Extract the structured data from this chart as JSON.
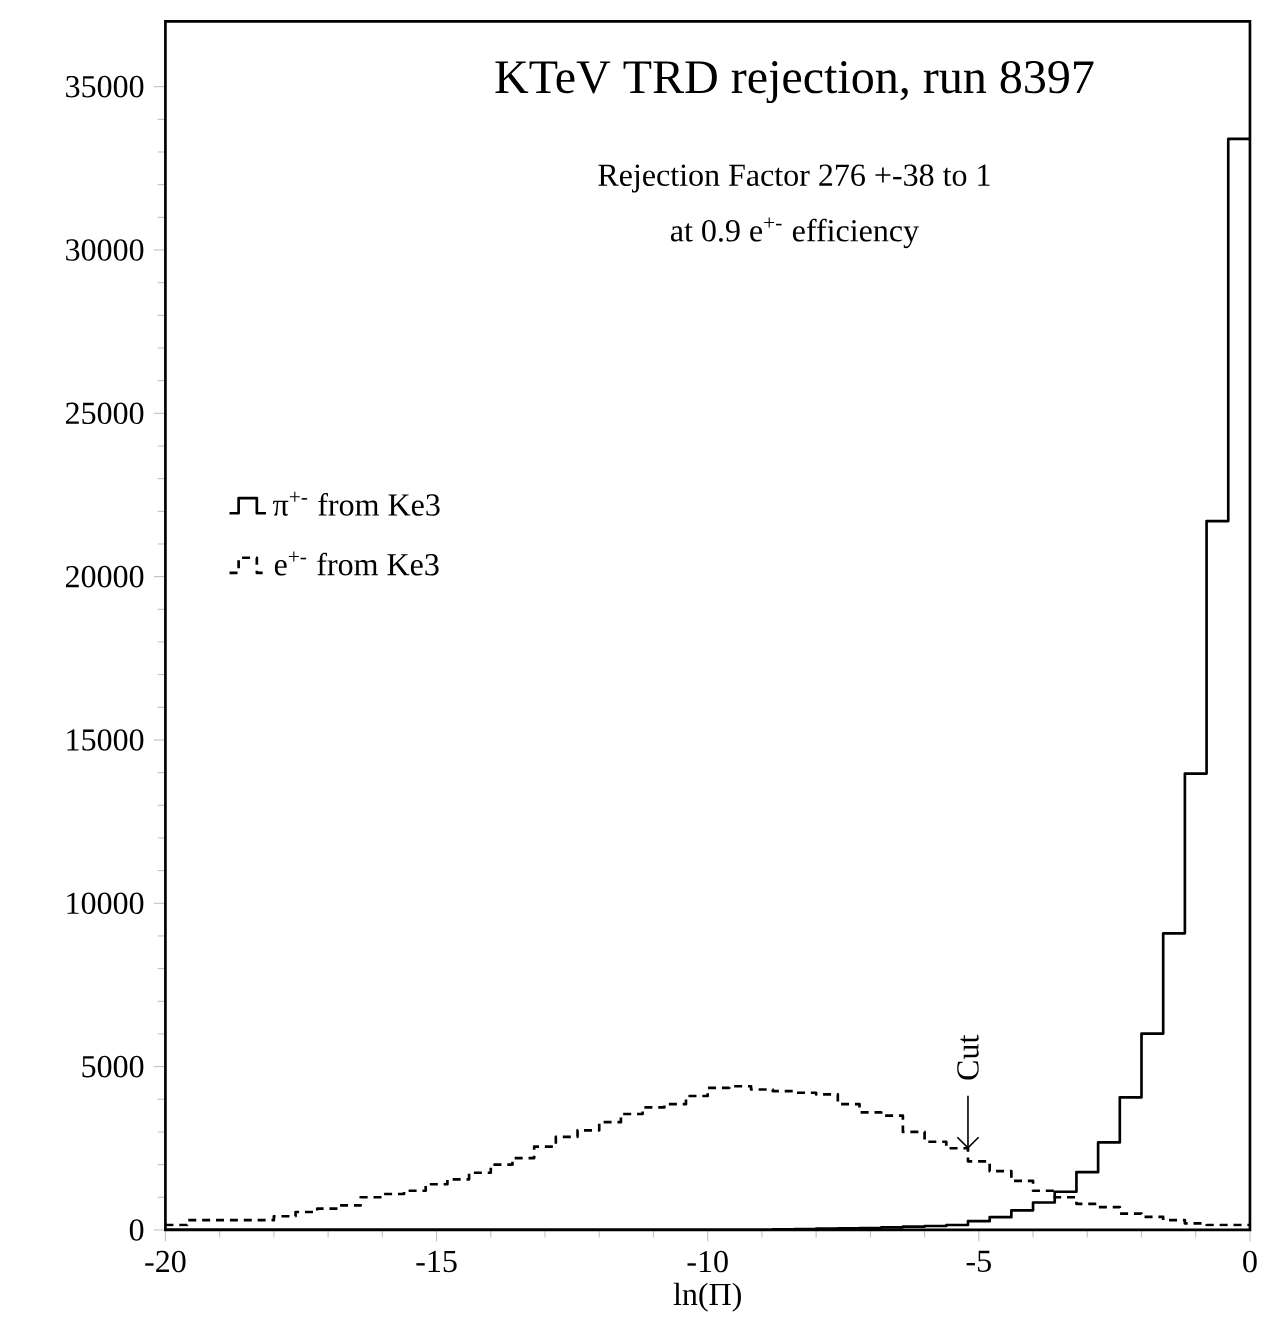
{
  "chart_data": {
    "type": "histogram",
    "title": "KTeV TRD rejection, run 8397",
    "xlabel": "ln(Π)",
    "bins": [
      -20,
      -19.6,
      -19.2,
      -18.8,
      -18.4,
      -18,
      -17.6,
      -17.2,
      -16.8,
      -16.4,
      -16,
      -15.6,
      -15.2,
      -14.8,
      -14.4,
      -14,
      -13.6,
      -13.2,
      -12.8,
      -12.4,
      -12,
      -11.6,
      -11.2,
      -10.8,
      -10.4,
      -10,
      -9.6,
      -9.2,
      -8.8,
      -8.4,
      -8,
      -7.6,
      -7.2,
      -6.8,
      -6.4,
      -6,
      -5.6,
      -5.2,
      -4.8,
      -4.4,
      -4,
      -3.6,
      -3.2,
      -2.8,
      -2.4,
      -2,
      -1.6,
      -1.2,
      -0.8,
      -0.4,
      0
    ],
    "series": [
      {
        "name": "π$^{+-}$ from Ke3",
        "color": "#000000",
        "line_style": "solid",
        "values": [
          0,
          0,
          0,
          0,
          0,
          0,
          0,
          0,
          0,
          0,
          0,
          0,
          0,
          0,
          0,
          0,
          0,
          0,
          0,
          0,
          0,
          0,
          0,
          0,
          0,
          0,
          0,
          0,
          20,
          30,
          40,
          50,
          60,
          80,
          100,
          120,
          150,
          270,
          390,
          600,
          840,
          1170,
          1770,
          2680,
          4060,
          6010,
          9080,
          13970,
          21700,
          33400
        ]
      },
      {
        "name": "e$^{+-}$ from Ke3",
        "color": "#000000",
        "line_style": "dashed",
        "values": [
          150,
          300,
          300,
          300,
          300,
          420,
          550,
          650,
          750,
          1000,
          1100,
          1200,
          1400,
          1550,
          1750,
          2000,
          2200,
          2550,
          2850,
          3050,
          3300,
          3550,
          3750,
          3850,
          4100,
          4350,
          4400,
          4300,
          4250,
          4200,
          4150,
          3850,
          3600,
          3500,
          3000,
          2700,
          2500,
          2100,
          1800,
          1500,
          1200,
          1000,
          800,
          700,
          500,
          400,
          300,
          200,
          150,
          150
        ]
      }
    ],
    "xlim": [
      -20,
      0
    ],
    "ylim": [
      0,
      37000
    ],
    "xticks": [
      -20,
      -15,
      -10,
      -5,
      0
    ],
    "yticks": [
      0,
      5000,
      10000,
      15000,
      20000,
      25000,
      30000,
      35000
    ],
    "legend": "top left",
    "annotations": [
      "Rejection Factor 276 +-38 to 1",
      "at 0.9 e$^{+-}$ efficiency",
      {
        "text": "Cut",
        "x": -5.2,
        "y": 2150
      }
    ]
  }
}
